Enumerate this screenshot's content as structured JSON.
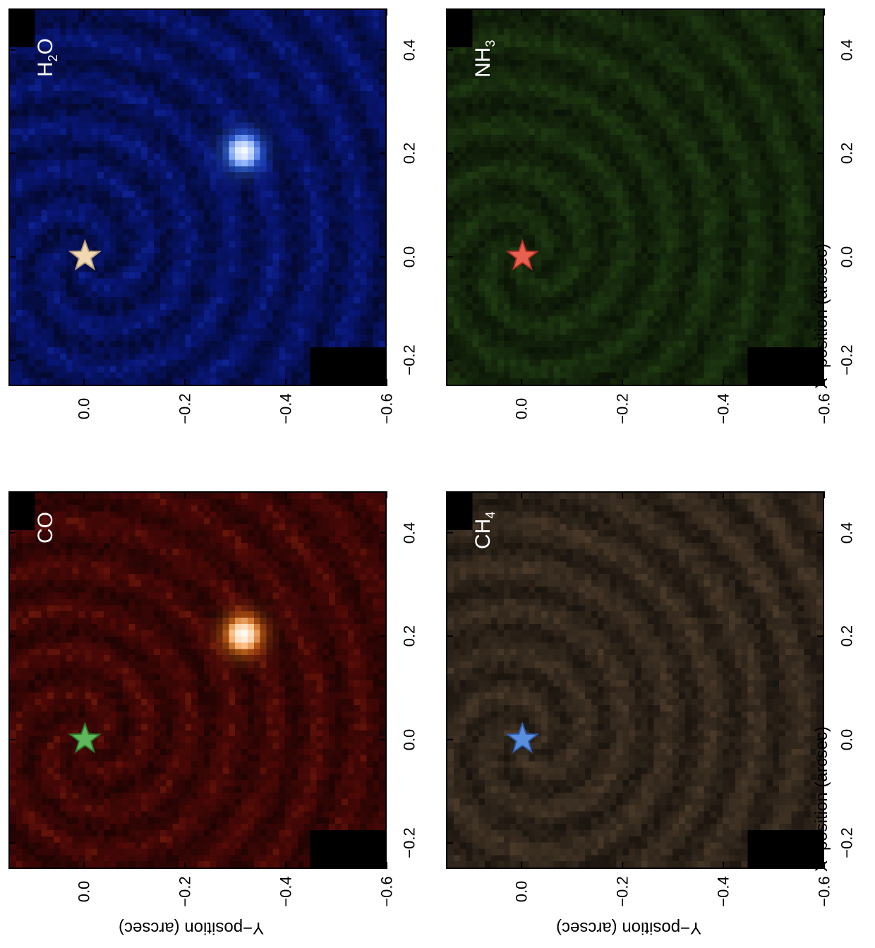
{
  "chart_data": [
    {
      "type": "heatmap",
      "species": {
        "main": "CO",
        "sub": ""
      },
      "colors": {
        "bg": "#5a0a08",
        "peak": "#ffffff",
        "mid": "#ff8a1a",
        "star": "#5fb85a",
        "star_edge": "#2f7a2e"
      },
      "companion": {
        "x": 0.21,
        "y": -0.31
      },
      "star": {
        "x": 0.0,
        "y": 0.0
      },
      "x_ticks": [
        "−0.2",
        "0.0",
        "0.2",
        "0.4"
      ],
      "y_ticks": [
        "0.0",
        "−0.2",
        "−0.4",
        "−0.6"
      ],
      "xlim": [
        -0.25,
        0.48
      ],
      "ylim": [
        0.15,
        -0.6
      ]
    },
    {
      "type": "heatmap",
      "species": {
        "main": "H",
        "sub": "2",
        "tail": "O"
      },
      "colors": {
        "bg": "#0a1a8a",
        "peak": "#ffffff",
        "mid": "#3a7aff",
        "star": "#f2d8b0",
        "star_edge": "#b8a080"
      },
      "companion": {
        "x": 0.21,
        "y": -0.31
      },
      "star": {
        "x": 0.0,
        "y": 0.0
      },
      "x_ticks": [
        "−0.2",
        "0.0",
        "0.2",
        "0.4"
      ],
      "y_ticks": [
        "0.0",
        "−0.2",
        "−0.4",
        "−0.6"
      ],
      "xlim": [
        -0.25,
        0.48
      ],
      "ylim": [
        0.15,
        -0.6
      ]
    },
    {
      "type": "heatmap",
      "species": {
        "main": "CH",
        "sub": "4"
      },
      "colors": {
        "bg": "#4a3a2a",
        "peak": "#7a6044",
        "mid": "#6a5038",
        "star": "#5a8fe0",
        "star_edge": "#2f5fb0"
      },
      "companion": null,
      "star": {
        "x": 0.0,
        "y": 0.0
      },
      "x_ticks": [
        "−0.2",
        "0.0",
        "0.2",
        "0.4"
      ],
      "y_ticks": [
        "0.0",
        "−0.2",
        "−0.4",
        "−0.6"
      ],
      "xlim": [
        -0.25,
        0.48
      ],
      "ylim": [
        0.15,
        -0.6
      ]
    },
    {
      "type": "heatmap",
      "species": {
        "main": "NH",
        "sub": "3"
      },
      "colors": {
        "bg": "#1f3a12",
        "peak": "#3a6a22",
        "mid": "#2e5519",
        "star": "#e8604f",
        "star_edge": "#b03028"
      },
      "companion": null,
      "star": {
        "x": 0.0,
        "y": 0.0
      },
      "x_ticks": [
        "−0.2",
        "0.0",
        "0.2",
        "0.4"
      ],
      "y_ticks": [
        "0.0",
        "−0.2",
        "−0.4",
        "−0.6"
      ],
      "xlim": [
        -0.25,
        0.48
      ],
      "ylim": [
        0.15,
        -0.6
      ]
    }
  ],
  "axes": {
    "xlabel": "X−position (arcsec)",
    "ylabel": "Y−position (arcsec)"
  }
}
